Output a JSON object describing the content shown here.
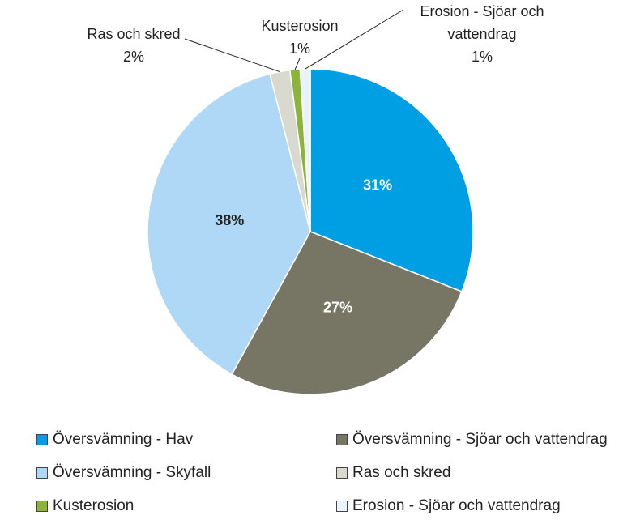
{
  "chart_data": {
    "type": "pie",
    "categories": [
      "Översvämning - Hav",
      "Översvämning - Sjöar och vattendrag",
      "Översvämning - Skyfall",
      "Ras och skred",
      "Kusterosion",
      "Erosion - Sjöar och vattendrag"
    ],
    "values": [
      31,
      27,
      38,
      2,
      1,
      1
    ],
    "value_labels": [
      "31%",
      "27%",
      "38%",
      "2%",
      "1%",
      "1%"
    ],
    "colors": [
      "#009fe3",
      "#777664",
      "#aed8f5",
      "#d9d9cf",
      "#8cb33a",
      "#e9f3fc"
    ],
    "legend": "bottom"
  }
}
